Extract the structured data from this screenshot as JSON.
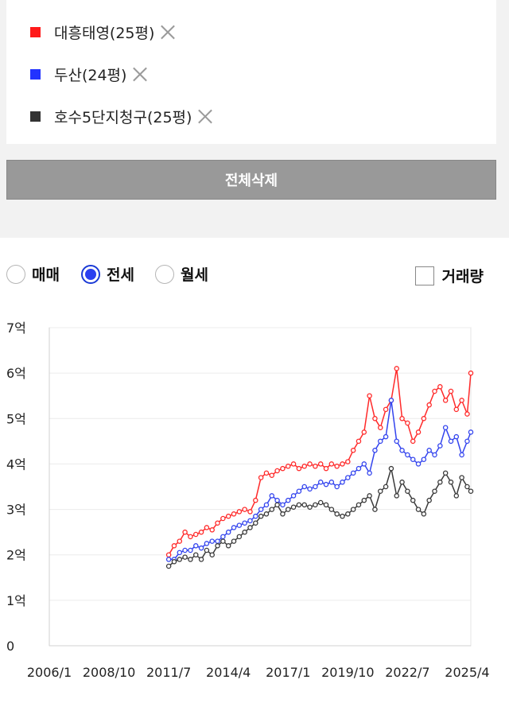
{
  "selected_items": [
    {
      "label": "대흥태영(25평)",
      "color": "#ff1a1a"
    },
    {
      "label": "두산(24평)",
      "color": "#2233ff"
    },
    {
      "label": "호수5단지청구(25평)",
      "color": "#333333"
    }
  ],
  "clear_button": "전체삭제",
  "trade_types": [
    {
      "label": "매매",
      "selected": false
    },
    {
      "label": "전세",
      "selected": true
    },
    {
      "label": "월세",
      "selected": false
    }
  ],
  "volume_checkbox": {
    "label": "거래량",
    "checked": false
  },
  "chart_data": {
    "type": "line",
    "y_tick_labels": [
      "0",
      "1억",
      "2억",
      "3억",
      "4억",
      "5억",
      "6억",
      "7억"
    ],
    "ylim": [
      0,
      7
    ],
    "y_unit": "억",
    "x_tick_labels": [
      "2006/1",
      "2008/10",
      "2011/7",
      "2014/4",
      "2017/1",
      "2019/10",
      "2022/7",
      "2025/4"
    ],
    "xlim": [
      "2006/1",
      "2025/6"
    ],
    "grid": true,
    "series": [
      {
        "name": "대흥태영(25평)",
        "color": "#ff2a2a",
        "points": [
          [
            "2011/7",
            2.0
          ],
          [
            "2011/10",
            2.2
          ],
          [
            "2012/1",
            2.3
          ],
          [
            "2012/4",
            2.5
          ],
          [
            "2012/7",
            2.4
          ],
          [
            "2012/10",
            2.45
          ],
          [
            "2013/1",
            2.5
          ],
          [
            "2013/4",
            2.6
          ],
          [
            "2013/7",
            2.55
          ],
          [
            "2013/10",
            2.7
          ],
          [
            "2014/1",
            2.8
          ],
          [
            "2014/4",
            2.85
          ],
          [
            "2014/7",
            2.9
          ],
          [
            "2014/10",
            2.95
          ],
          [
            "2015/1",
            3.0
          ],
          [
            "2015/4",
            2.95
          ],
          [
            "2015/7",
            3.2
          ],
          [
            "2015/10",
            3.7
          ],
          [
            "2016/1",
            3.8
          ],
          [
            "2016/4",
            3.75
          ],
          [
            "2016/7",
            3.85
          ],
          [
            "2016/10",
            3.9
          ],
          [
            "2017/1",
            3.95
          ],
          [
            "2017/4",
            4.0
          ],
          [
            "2017/7",
            3.9
          ],
          [
            "2017/10",
            3.95
          ],
          [
            "2018/1",
            4.0
          ],
          [
            "2018/4",
            3.95
          ],
          [
            "2018/7",
            4.0
          ],
          [
            "2018/10",
            3.9
          ],
          [
            "2019/1",
            4.0
          ],
          [
            "2019/4",
            3.95
          ],
          [
            "2019/7",
            4.0
          ],
          [
            "2019/10",
            4.05
          ],
          [
            "2020/1",
            4.3
          ],
          [
            "2020/4",
            4.5
          ],
          [
            "2020/7",
            4.7
          ],
          [
            "2020/10",
            5.5
          ],
          [
            "2021/1",
            5.0
          ],
          [
            "2021/4",
            4.8
          ],
          [
            "2021/7",
            5.2
          ],
          [
            "2021/10",
            5.4
          ],
          [
            "2022/1",
            6.1
          ],
          [
            "2022/4",
            5.0
          ],
          [
            "2022/7",
            4.9
          ],
          [
            "2022/10",
            4.5
          ],
          [
            "2023/1",
            4.7
          ],
          [
            "2023/4",
            5.0
          ],
          [
            "2023/7",
            5.3
          ],
          [
            "2023/10",
            5.6
          ],
          [
            "2024/1",
            5.7
          ],
          [
            "2024/4",
            5.4
          ],
          [
            "2024/7",
            5.6
          ],
          [
            "2024/10",
            5.2
          ],
          [
            "2025/1",
            5.4
          ],
          [
            "2025/4",
            5.1
          ],
          [
            "2025/6",
            6.0
          ]
        ]
      },
      {
        "name": "두산(24평)",
        "color": "#3344ee",
        "points": [
          [
            "2011/7",
            1.9
          ],
          [
            "2011/10",
            1.9
          ],
          [
            "2012/1",
            2.05
          ],
          [
            "2012/4",
            2.1
          ],
          [
            "2012/7",
            2.1
          ],
          [
            "2012/10",
            2.2
          ],
          [
            "2013/1",
            2.15
          ],
          [
            "2013/4",
            2.25
          ],
          [
            "2013/7",
            2.3
          ],
          [
            "2013/10",
            2.3
          ],
          [
            "2014/1",
            2.4
          ],
          [
            "2014/4",
            2.5
          ],
          [
            "2014/7",
            2.6
          ],
          [
            "2014/10",
            2.65
          ],
          [
            "2015/1",
            2.7
          ],
          [
            "2015/4",
            2.75
          ],
          [
            "2015/7",
            2.85
          ],
          [
            "2015/10",
            3.0
          ],
          [
            "2016/1",
            3.1
          ],
          [
            "2016/4",
            3.3
          ],
          [
            "2016/7",
            3.2
          ],
          [
            "2016/10",
            3.1
          ],
          [
            "2017/1",
            3.2
          ],
          [
            "2017/4",
            3.3
          ],
          [
            "2017/7",
            3.4
          ],
          [
            "2017/10",
            3.5
          ],
          [
            "2018/1",
            3.45
          ],
          [
            "2018/4",
            3.5
          ],
          [
            "2018/7",
            3.6
          ],
          [
            "2018/10",
            3.55
          ],
          [
            "2019/1",
            3.6
          ],
          [
            "2019/4",
            3.5
          ],
          [
            "2019/7",
            3.6
          ],
          [
            "2019/10",
            3.7
          ],
          [
            "2020/1",
            3.8
          ],
          [
            "2020/4",
            3.9
          ],
          [
            "2020/7",
            4.0
          ],
          [
            "2020/10",
            3.8
          ],
          [
            "2021/1",
            4.3
          ],
          [
            "2021/4",
            4.5
          ],
          [
            "2021/7",
            4.6
          ],
          [
            "2021/10",
            5.4
          ],
          [
            "2022/1",
            4.5
          ],
          [
            "2022/4",
            4.3
          ],
          [
            "2022/7",
            4.2
          ],
          [
            "2022/10",
            4.1
          ],
          [
            "2023/1",
            4.0
          ],
          [
            "2023/4",
            4.1
          ],
          [
            "2023/7",
            4.3
          ],
          [
            "2023/10",
            4.2
          ],
          [
            "2024/1",
            4.4
          ],
          [
            "2024/4",
            4.8
          ],
          [
            "2024/7",
            4.5
          ],
          [
            "2024/10",
            4.6
          ],
          [
            "2025/1",
            4.2
          ],
          [
            "2025/4",
            4.5
          ],
          [
            "2025/6",
            4.7
          ]
        ]
      },
      {
        "name": "호수5단지청구(25평)",
        "color": "#3a3a3a",
        "points": [
          [
            "2011/7",
            1.75
          ],
          [
            "2011/10",
            1.85
          ],
          [
            "2012/1",
            1.9
          ],
          [
            "2012/4",
            1.95
          ],
          [
            "2012/7",
            1.9
          ],
          [
            "2012/10",
            2.0
          ],
          [
            "2013/1",
            1.9
          ],
          [
            "2013/4",
            2.1
          ],
          [
            "2013/7",
            2.0
          ],
          [
            "2013/10",
            2.2
          ],
          [
            "2014/1",
            2.3
          ],
          [
            "2014/4",
            2.2
          ],
          [
            "2014/7",
            2.3
          ],
          [
            "2014/10",
            2.4
          ],
          [
            "2015/1",
            2.5
          ],
          [
            "2015/4",
            2.6
          ],
          [
            "2015/7",
            2.7
          ],
          [
            "2015/10",
            2.85
          ],
          [
            "2016/1",
            2.9
          ],
          [
            "2016/4",
            3.0
          ],
          [
            "2016/7",
            3.1
          ],
          [
            "2016/10",
            2.9
          ],
          [
            "2017/1",
            3.0
          ],
          [
            "2017/4",
            3.05
          ],
          [
            "2017/7",
            3.1
          ],
          [
            "2017/10",
            3.1
          ],
          [
            "2018/1",
            3.05
          ],
          [
            "2018/4",
            3.1
          ],
          [
            "2018/7",
            3.15
          ],
          [
            "2018/10",
            3.1
          ],
          [
            "2019/1",
            3.0
          ],
          [
            "2019/4",
            2.9
          ],
          [
            "2019/7",
            2.85
          ],
          [
            "2019/10",
            2.9
          ],
          [
            "2020/1",
            3.0
          ],
          [
            "2020/4",
            3.1
          ],
          [
            "2020/7",
            3.2
          ],
          [
            "2020/10",
            3.3
          ],
          [
            "2021/1",
            3.0
          ],
          [
            "2021/4",
            3.4
          ],
          [
            "2021/7",
            3.5
          ],
          [
            "2021/10",
            3.9
          ],
          [
            "2022/1",
            3.3
          ],
          [
            "2022/4",
            3.6
          ],
          [
            "2022/7",
            3.4
          ],
          [
            "2022/10",
            3.2
          ],
          [
            "2023/1",
            3.0
          ],
          [
            "2023/4",
            2.9
          ],
          [
            "2023/7",
            3.2
          ],
          [
            "2023/10",
            3.4
          ],
          [
            "2024/1",
            3.6
          ],
          [
            "2024/4",
            3.8
          ],
          [
            "2024/7",
            3.6
          ],
          [
            "2024/10",
            3.3
          ],
          [
            "2025/1",
            3.7
          ],
          [
            "2025/4",
            3.5
          ],
          [
            "2025/6",
            3.4
          ]
        ]
      }
    ]
  }
}
